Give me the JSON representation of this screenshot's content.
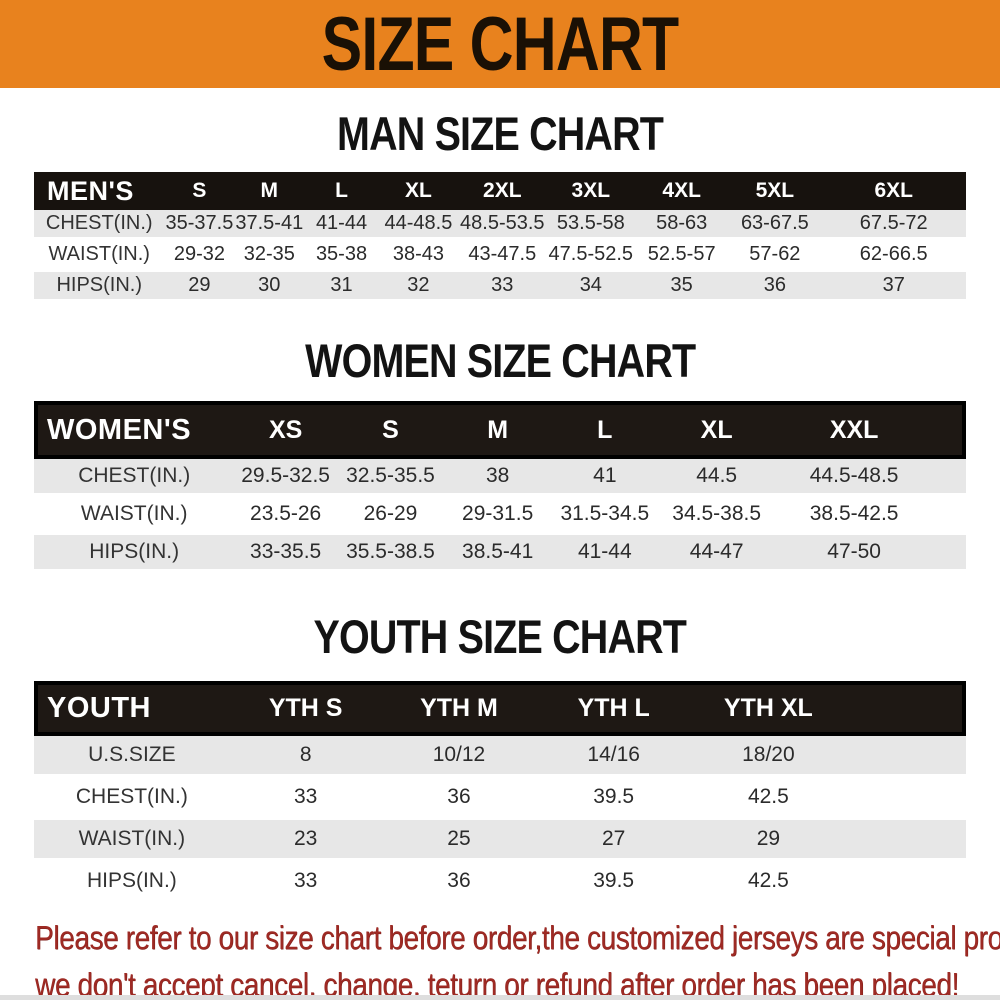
{
  "banner": {
    "title": "SIZE CHART",
    "bg_color": "#E8821E",
    "text_color": "#1A1005"
  },
  "sections": [
    {
      "id": "men",
      "heading": "MAN SIZE CHART",
      "header_label": "MEN'S",
      "columns": [
        "S",
        "M",
        "L",
        "XL",
        "2XL",
        "3XL",
        "4XL",
        "5XL",
        "6XL"
      ],
      "rows": [
        {
          "label": "CHEST(IN.)",
          "values": [
            "35-37.5",
            "37.5-41",
            "41-44",
            "44-48.5",
            "48.5-53.5",
            "53.5-58",
            "58-63",
            "63-67.5",
            "67.5-72"
          ]
        },
        {
          "label": "WAIST(IN.)",
          "values": [
            "29-32",
            "32-35",
            "35-38",
            "38-43",
            "43-47.5",
            "47.5-52.5",
            "52.5-57",
            "57-62",
            "62-66.5"
          ]
        },
        {
          "label": "HIPS(IN.)",
          "values": [
            "29",
            "30",
            "31",
            "32",
            "33",
            "34",
            "35",
            "36",
            "37"
          ]
        }
      ]
    },
    {
      "id": "women",
      "heading": "WOMEN SIZE CHART",
      "header_label": "WOMEN'S",
      "columns": [
        "XS",
        "S",
        "M",
        "L",
        "XL",
        "XXL"
      ],
      "rows": [
        {
          "label": "CHEST(IN.)",
          "values": [
            "29.5-32.5",
            "32.5-35.5",
            "38",
            "41",
            "44.5",
            "44.5-48.5"
          ]
        },
        {
          "label": "WAIST(IN.)",
          "values": [
            "23.5-26",
            "26-29",
            "29-31.5",
            "31.5-34.5",
            "34.5-38.5",
            "38.5-42.5"
          ]
        },
        {
          "label": "HIPS(IN.)",
          "values": [
            "33-35.5",
            "35.5-38.5",
            "38.5-41",
            "41-44",
            "44-47",
            "47-50"
          ]
        }
      ]
    },
    {
      "id": "youth",
      "heading": "YOUTH SIZE CHART",
      "header_label": "YOUTH",
      "columns": [
        "YTH S",
        "YTH M",
        "YTH L",
        "YTH XL"
      ],
      "rows": [
        {
          "label": "U.S.SIZE",
          "values": [
            "8",
            "10/12",
            "14/16",
            "18/20"
          ]
        },
        {
          "label": "CHEST(IN.)",
          "values": [
            "33",
            "36",
            "39.5",
            "42.5"
          ]
        },
        {
          "label": "WAIST(IN.)",
          "values": [
            "23",
            "25",
            "27",
            "29"
          ]
        },
        {
          "label": "HIPS(IN.)",
          "values": [
            "33",
            "36",
            "39.5",
            "42.5"
          ]
        }
      ]
    }
  ],
  "note": {
    "lines": [
      "Please refer to our size chart before order,the customized jerseys are special products,",
      "we don't accept cancel, change, teturn or refund after order has been placed!"
    ],
    "text_color": "#9E2A24"
  },
  "colors": {
    "table_header_bg": "#17120E",
    "row_alt_bg": "#E7E7E7",
    "row_bg": "#FFFFFF"
  }
}
